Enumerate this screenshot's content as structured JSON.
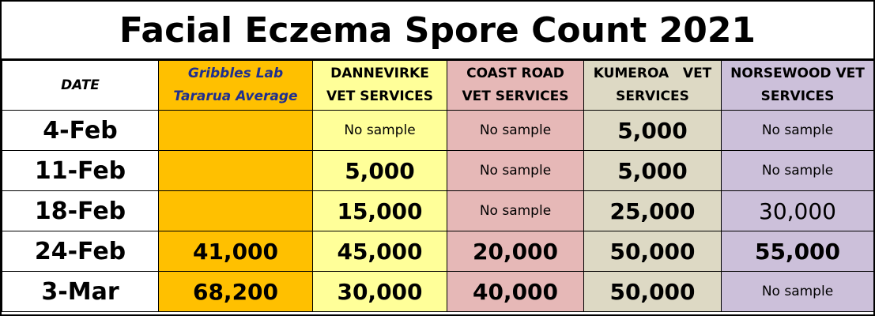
{
  "title": "Facial Eczema Spore Count 2021",
  "colors": {
    "gribbles": "#ffc000",
    "dannevirke": "#ffff99",
    "coast_road": "#e6b8b7",
    "kumeroa": "#ddd9c4",
    "norsewood": "#ccc0da",
    "header_blue_text": "#1f2f8f"
  },
  "headers": {
    "date": "DATE",
    "gribbles": [
      "Gribbles Lab",
      "Tararua Average"
    ],
    "dannevirke": [
      "DANNEVIRKE",
      "VET SERVICES"
    ],
    "coast_road": [
      "COAST ROAD",
      "VET SERVICES"
    ],
    "kumeroa": [
      "KUMEROA   VET",
      "SERVICES"
    ],
    "norsewood": [
      "NORSEWOOD VET",
      "SERVICES"
    ]
  },
  "rows": [
    {
      "date": "4-Feb",
      "gribbles": "",
      "dannevirke": "No sample",
      "coast_road": "No sample",
      "kumeroa": "5,000",
      "norsewood": "No sample"
    },
    {
      "date": "11-Feb",
      "gribbles": "",
      "dannevirke": "5,000",
      "coast_road": "No sample",
      "kumeroa": "5,000",
      "norsewood": "No sample"
    },
    {
      "date": "18-Feb",
      "gribbles": "",
      "dannevirke": "15,000",
      "coast_road": "No sample",
      "kumeroa": "25,000",
      "norsewood": "30,000"
    },
    {
      "date": "24-Feb",
      "gribbles": "41,000",
      "dannevirke": "45,000",
      "coast_road": "20,000",
      "kumeroa": "50,000",
      "norsewood": "55,000"
    },
    {
      "date": "3-Mar",
      "gribbles": "68,200",
      "dannevirke": "30,000",
      "coast_road": "40,000",
      "kumeroa": "50,000",
      "norsewood": "No sample"
    }
  ]
}
